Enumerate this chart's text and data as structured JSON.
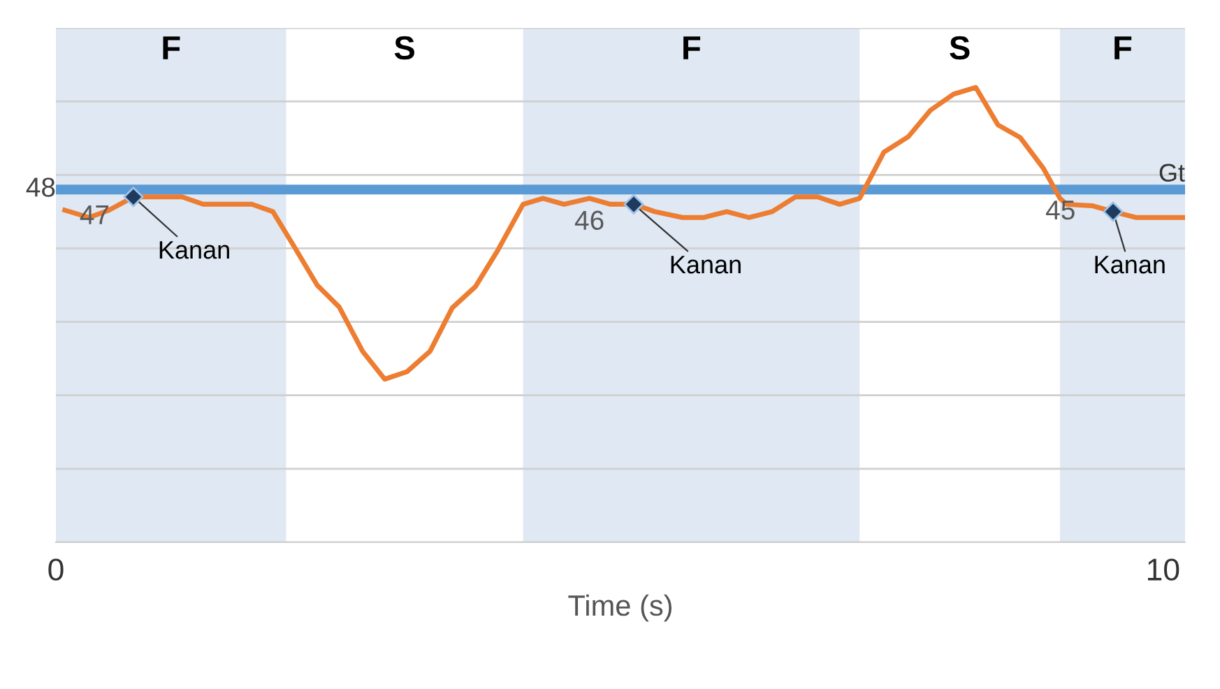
{
  "chart_data": {
    "type": "line",
    "xlabel": "Time (s)",
    "xlim": [
      0,
      10.2
    ],
    "xticks": [
      0,
      10
    ],
    "ylim": [
      0,
      70
    ],
    "yticks": [
      {
        "value": 0,
        "label": null
      },
      {
        "value": 10,
        "label": null
      },
      {
        "value": 20,
        "label": null
      },
      {
        "value": 30,
        "label": null
      },
      {
        "value": 40,
        "label": null
      },
      {
        "value": 50,
        "label": null
      },
      {
        "value": 60,
        "label": null
      },
      {
        "value": 70,
        "label": null
      }
    ],
    "tick_labels": "x",
    "grid": "y",
    "series": [
      {
        "color": "#ed7d31",
        "x": [
          0.08,
          0.3,
          0.48,
          0.7,
          0.95,
          1.14,
          1.33,
          1.77,
          1.96,
          2.15,
          2.36,
          2.56,
          2.77,
          2.97,
          3.17,
          3.38,
          3.58,
          3.79,
          3.99,
          4.22,
          4.4,
          4.59,
          4.82,
          5.01,
          5.22,
          5.41,
          5.66,
          5.85,
          6.06,
          6.26,
          6.47,
          6.68,
          6.88,
          7.08,
          7.26,
          7.48,
          7.7,
          7.9,
          8.11,
          8.31,
          8.51,
          8.71,
          8.92,
          9.07,
          9.13,
          9.36,
          9.55,
          9.76,
          10.2
        ],
        "values": [
          45.2,
          44.2,
          45.2,
          47,
          47,
          47,
          46,
          46,
          45,
          40.3,
          35,
          32,
          26,
          22.2,
          23.2,
          26,
          31.9,
          34.8,
          39.7,
          46,
          46.8,
          46,
          46.8,
          46,
          46,
          45,
          44.2,
          44.2,
          45,
          44.2,
          45,
          47,
          47,
          46,
          46.8,
          53.1,
          55.2,
          58.8,
          61,
          61.9,
          56.8,
          55.1,
          50.9,
          46.8,
          46,
          45.8,
          45,
          44.2,
          44.2
        ]
      },
      {
        "type": "scatter",
        "color": "#1f3a5f",
        "marker": "diamond",
        "x": [
          0.7,
          5.22,
          9.55
        ],
        "values": [
          47,
          46,
          45
        ],
        "value_labels": [
          "47",
          "46",
          "45"
        ]
      }
    ],
    "ref_lines": [
      {
        "axis": "y",
        "value": 48,
        "label": "Gt",
        "color": "#5b9bd5"
      }
    ],
    "bands": [
      {
        "axis": "x",
        "from": 0,
        "to": 2.08,
        "label": "F",
        "color": "#dfe8f3"
      },
      {
        "axis": "x",
        "from": 4.22,
        "to": 7.26,
        "label": "F",
        "color": "#dfe8f3"
      },
      {
        "axis": "x",
        "from": 9.07,
        "to": 10.2,
        "label": "F",
        "color": "#dfe8f3"
      }
    ],
    "annotations": [
      "S",
      "S",
      {
        "text": "48",
        "x": 0,
        "y": 48
      },
      {
        "text": "Kanan",
        "x": 0.7,
        "y": 47
      },
      {
        "text": "Kanan",
        "x": 5.22,
        "y": 46
      },
      {
        "text": "Kanan",
        "x": 9.55,
        "y": 45
      }
    ]
  }
}
